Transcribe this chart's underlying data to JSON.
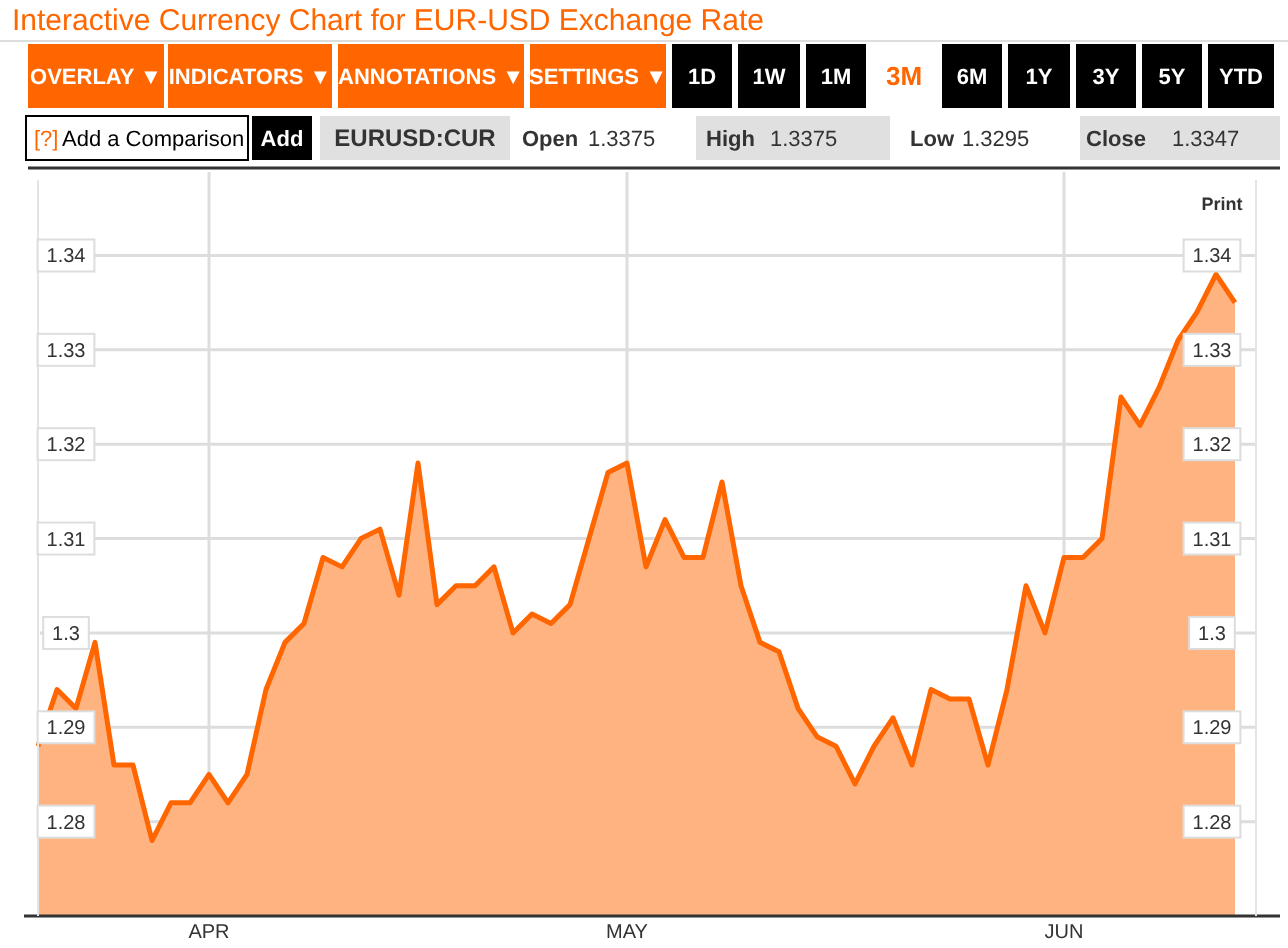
{
  "chart_data": {
    "type": "area",
    "title": "Interactive Currency Chart for EUR-USD Exchange Rate",
    "categories": [
      null,
      null,
      null,
      null,
      null,
      null,
      null,
      null,
      null,
      "APR",
      null,
      null,
      null,
      null,
      null,
      null,
      null,
      null,
      null,
      null,
      null,
      null,
      null,
      null,
      null,
      null,
      null,
      null,
      null,
      null,
      null,
      "MAY",
      null,
      null,
      null,
      null,
      null,
      null,
      null,
      null,
      null,
      null,
      null,
      null,
      null,
      null,
      null,
      null,
      null,
      null,
      null,
      null,
      null,
      null,
      "JUN",
      null,
      null,
      null,
      null,
      null,
      null,
      null,
      null,
      null
    ],
    "series": [
      {
        "color": "#ff6600",
        "values": [
          1.288,
          1.294,
          1.292,
          1.299,
          1.286,
          1.286,
          1.278,
          1.282,
          1.282,
          1.285,
          1.282,
          1.285,
          1.294,
          1.299,
          1.301,
          1.308,
          1.307,
          1.31,
          1.311,
          1.304,
          1.318,
          1.303,
          1.305,
          1.305,
          1.307,
          1.3,
          1.302,
          1.301,
          1.303,
          1.31,
          1.317,
          1.318,
          1.307,
          1.312,
          1.308,
          1.308,
          1.316,
          1.305,
          1.299,
          1.298,
          1.292,
          1.289,
          1.288,
          1.284,
          1.288,
          1.291,
          1.286,
          1.294,
          1.293,
          1.293,
          1.286,
          1.294,
          1.305,
          1.3,
          1.308,
          1.308,
          1.31,
          1.325,
          1.322,
          1.326,
          1.331,
          1.334,
          1.338,
          1.335
        ]
      }
    ],
    "ylim": [
      1.27,
      1.348
    ],
    "yticks": [
      1.28,
      1.29,
      1.3,
      1.31,
      1.32,
      1.33,
      1.34
    ],
    "y2lim": [
      1.27,
      1.348
    ],
    "y2ticks": [
      1.28,
      1.29,
      1.3,
      1.31,
      1.32,
      1.33,
      1.34
    ],
    "grid": true,
    "annotations": [
      "OVERLAY ▼",
      "INDICATORS ▼",
      "ANNOTATIONS ▼",
      "SETTINGS ▼",
      "1D",
      "1W",
      "1M",
      "3M",
      "6M",
      "1Y",
      "3Y",
      "5Y",
      "YTD",
      "[?]",
      "Add a Comparison",
      "Add",
      "EURUSD:CUR",
      "Open",
      "1.3375",
      "High",
      "1.3375",
      "Low",
      "1.3295",
      "Close",
      "1.3347",
      "Print"
    ]
  }
}
